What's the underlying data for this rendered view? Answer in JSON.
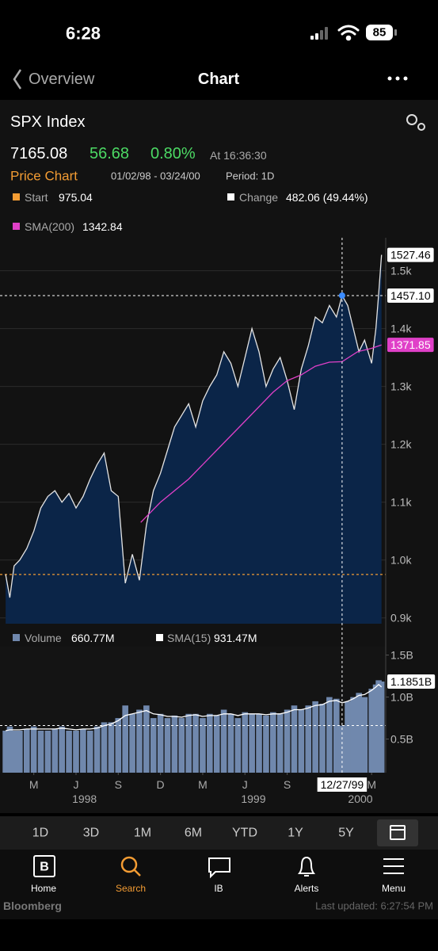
{
  "status_bar": {
    "time": "6:28",
    "battery": "85"
  },
  "nav": {
    "back": "Overview",
    "title": "Chart"
  },
  "quote": {
    "name": "SPX Index",
    "last": "7165.08",
    "change": "56.68",
    "change_pct": "0.80%",
    "time": "At 16:36:30"
  },
  "chart_header": {
    "label": "Price Chart",
    "range": "01/02/98 - 03/24/00",
    "period": "Period: 1D"
  },
  "chart_data": [
    {
      "type": "area",
      "start_label": "Start",
      "start": 975.04,
      "change_name": "Change",
      "change_label": "482.06 (49.44%)",
      "xlim": [
        -0.4,
        27
      ],
      "ylim": [
        890,
        1557
      ],
      "yticks": [
        {
          "value": 900,
          "label": "0.9k"
        },
        {
          "value": 1000,
          "label": "1.0k"
        },
        {
          "value": 1100,
          "label": "1.1k"
        },
        {
          "value": 1200,
          "label": "1.2k"
        },
        {
          "value": 1300,
          "label": "1.3k"
        },
        {
          "value": 1400,
          "label": "1.4k"
        },
        {
          "value": 1500,
          "label": "1.5k"
        }
      ],
      "grid": true,
      "crosshair": {
        "x": 23.9,
        "date": "12/27/99",
        "value": 1457.1,
        "label": "1457.10"
      },
      "series": [
        {
          "color": "#e4e4e4",
          "fill": "#0b2548",
          "x": [
            0,
            0.3,
            0.6,
            1,
            1.5,
            2,
            2.5,
            3,
            3.5,
            4,
            4.5,
            5,
            5.5,
            6,
            6.5,
            7,
            7.5,
            8,
            8.5,
            9,
            9.5,
            10,
            10.5,
            11,
            11.5,
            12,
            12.5,
            13,
            13.5,
            14,
            14.5,
            15,
            15.5,
            16,
            16.5,
            17,
            17.5,
            18,
            18.5,
            19,
            19.5,
            20,
            20.5,
            21,
            21.5,
            22,
            22.5,
            23,
            23.5,
            23.9,
            24.3,
            24.7,
            25.1,
            25.5,
            26,
            26.3,
            26.5,
            26.7
          ],
          "values": [
            975.04,
            935,
            990,
            1000,
            1020,
            1050,
            1090,
            1110,
            1120,
            1100,
            1115,
            1090,
            1110,
            1140,
            1165,
            1185,
            1120,
            1110,
            960,
            1010,
            965,
            1060,
            1120,
            1150,
            1190,
            1230,
            1250,
            1270,
            1230,
            1275,
            1300,
            1320,
            1360,
            1340,
            1300,
            1350,
            1400,
            1360,
            1300,
            1330,
            1350,
            1310,
            1260,
            1330,
            1370,
            1420,
            1410,
            1440,
            1420,
            1457.1,
            1440,
            1400,
            1360,
            1380,
            1340,
            1400,
            1460,
            1527.46
          ]
        },
        {
          "name": "SMA(200)",
          "color": "#e040c8",
          "crosshair_value": 1342.84,
          "x": [
            9.6,
            11,
            13,
            15,
            17,
            19,
            20,
            21,
            22,
            23,
            23.9,
            25,
            26,
            26.7
          ],
          "values": [
            1065,
            1100,
            1140,
            1190,
            1240,
            1290,
            1310,
            1320,
            1335,
            1342,
            1342.84,
            1360,
            1366,
            1371.85
          ]
        }
      ]
    },
    {
      "type": "bar",
      "xlim": [
        -0.4,
        27
      ],
      "ylim": [
        0.1,
        1.6
      ],
      "yticks": [
        {
          "value": 0.5,
          "label": "0.5B"
        },
        {
          "value": 1.0,
          "label": "1.0B"
        },
        {
          "value": 1.5,
          "label": "1.5B"
        }
      ],
      "xticks": [
        {
          "value": 2,
          "label": "M"
        },
        {
          "value": 5,
          "label": "J"
        },
        {
          "value": 8,
          "label": "S"
        },
        {
          "value": 11,
          "label": "D"
        },
        {
          "value": 14,
          "label": "M"
        },
        {
          "value": 17,
          "label": "J"
        },
        {
          "value": 20,
          "label": "S"
        },
        {
          "value": 26,
          "label": "M"
        }
      ],
      "year_labels": [
        {
          "value": 5.6,
          "label": "1998"
        },
        {
          "value": 17.6,
          "label": "1999"
        },
        {
          "value": 25.2,
          "label": "2000"
        }
      ],
      "crosshair_value": 0.66077,
      "series": [
        {
          "name": "Volume",
          "color": "#7088ad",
          "legend_label": "660.77M",
          "last_value_label": "1.1851B",
          "x": [
            0,
            0.3,
            0.6,
            1,
            1.5,
            2,
            2.5,
            3,
            3.5,
            4,
            4.5,
            5,
            5.5,
            6,
            6.5,
            7,
            7.5,
            8,
            8.5,
            9,
            9.5,
            10,
            10.5,
            11,
            11.5,
            12,
            12.5,
            13,
            13.5,
            14,
            14.5,
            15,
            15.5,
            16,
            16.5,
            17,
            17.5,
            18,
            18.5,
            19,
            19.5,
            20,
            20.5,
            21,
            21.5,
            22,
            22.5,
            23,
            23.5,
            23.9,
            24.3,
            24.7,
            25.1,
            25.5,
            26,
            26.3,
            26.5,
            26.7
          ],
          "values": [
            0.6,
            0.65,
            0.6,
            0.6,
            0.62,
            0.65,
            0.6,
            0.6,
            0.62,
            0.65,
            0.6,
            0.6,
            0.62,
            0.6,
            0.65,
            0.7,
            0.7,
            0.75,
            0.9,
            0.8,
            0.85,
            0.9,
            0.75,
            0.8,
            0.75,
            0.78,
            0.75,
            0.8,
            0.8,
            0.75,
            0.8,
            0.78,
            0.85,
            0.8,
            0.75,
            0.82,
            0.8,
            0.8,
            0.78,
            0.82,
            0.8,
            0.85,
            0.9,
            0.85,
            0.9,
            0.95,
            0.92,
            1.0,
            0.98,
            0.66077,
            0.95,
            1.0,
            1.05,
            1.0,
            1.1,
            1.15,
            1.2,
            1.1851
          ]
        },
        {
          "name": "SMA(15)",
          "color": "#ffffff",
          "legend_label": "931.47M",
          "x": [
            0,
            0.3,
            0.6,
            1,
            1.5,
            2,
            2.5,
            3,
            3.5,
            4,
            4.5,
            5,
            5.5,
            6,
            6.5,
            7,
            7.5,
            8,
            8.5,
            9,
            9.5,
            10,
            10.5,
            11,
            11.5,
            12,
            12.5,
            13,
            13.5,
            14,
            14.5,
            15,
            15.5,
            16,
            16.5,
            17,
            17.5,
            18,
            18.5,
            19,
            19.5,
            20,
            20.5,
            21,
            21.5,
            22,
            22.5,
            23,
            23.5,
            23.9,
            24.3,
            24.7,
            25.1,
            25.5,
            26,
            26.3,
            26.5,
            26.7
          ],
          "values": [
            0.6,
            0.61,
            0.61,
            0.61,
            0.62,
            0.62,
            0.62,
            0.62,
            0.62,
            0.63,
            0.62,
            0.61,
            0.62,
            0.62,
            0.63,
            0.66,
            0.68,
            0.72,
            0.78,
            0.8,
            0.82,
            0.84,
            0.8,
            0.79,
            0.77,
            0.77,
            0.76,
            0.78,
            0.79,
            0.77,
            0.78,
            0.78,
            0.8,
            0.8,
            0.78,
            0.8,
            0.8,
            0.8,
            0.79,
            0.8,
            0.8,
            0.82,
            0.85,
            0.85,
            0.87,
            0.9,
            0.91,
            0.95,
            0.96,
            0.93147,
            0.95,
            0.98,
            1.02,
            1.03,
            1.08,
            1.12,
            1.15,
            1.12
          ]
        }
      ]
    }
  ],
  "periods": [
    "1D",
    "3D",
    "1M",
    "6M",
    "YTD",
    "1Y",
    "5Y"
  ],
  "tabs": [
    "Home",
    "Search",
    "IB",
    "Alerts",
    "Menu"
  ],
  "footer": {
    "brand": "Bloomberg",
    "updated": "Last updated: 6:27:54 PM"
  }
}
